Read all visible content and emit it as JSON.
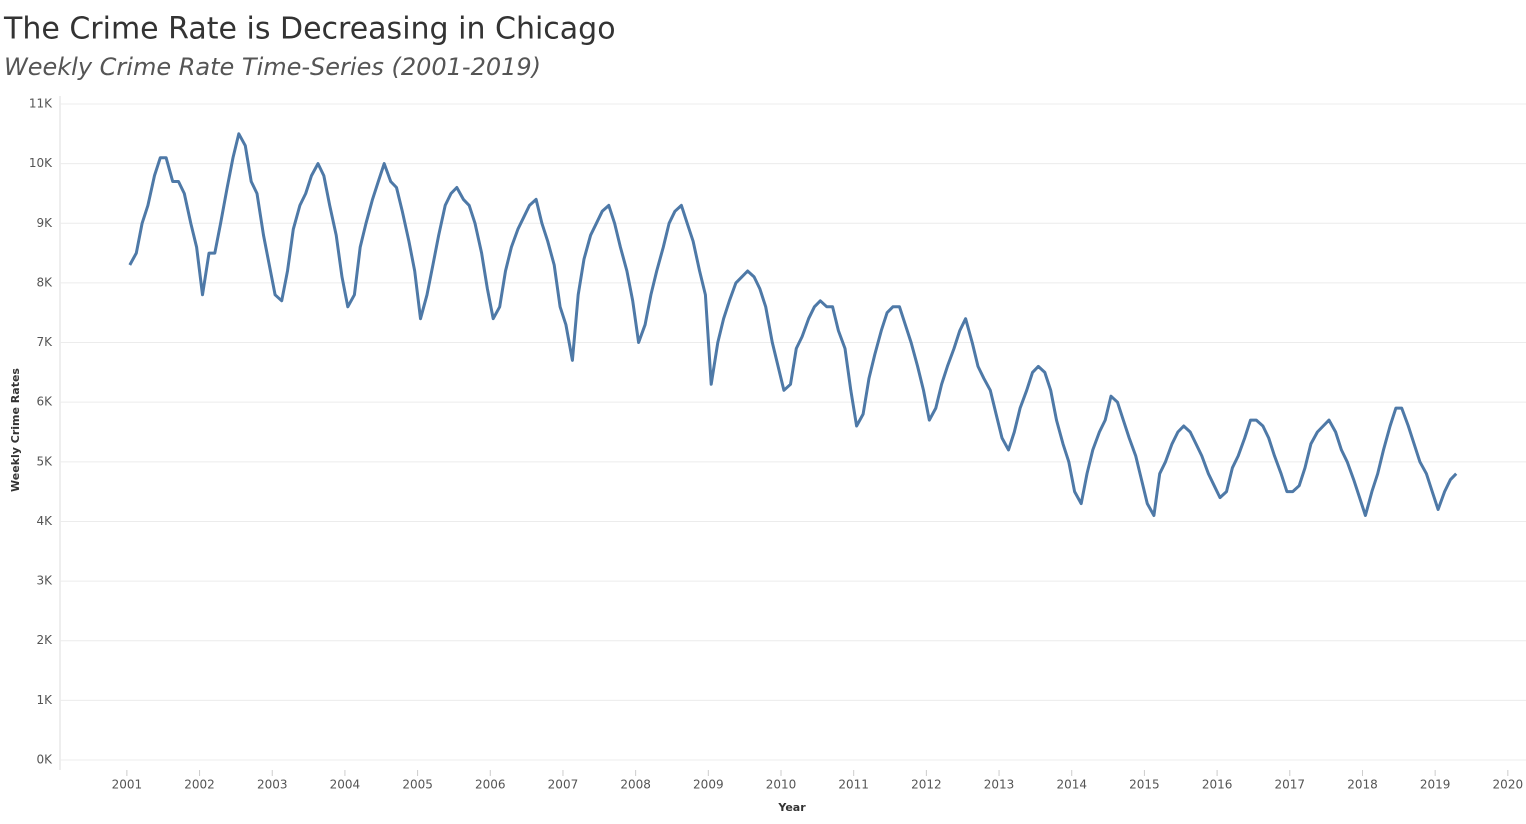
{
  "chart_data": {
    "type": "line",
    "title": "The Crime Rate is Decreasing in Chicago",
    "subtitle": "Weekly  Crime Rate Time-Series (2001-2019)",
    "x_label": "Year",
    "y_label": "Weekly Crime Rates",
    "x": [
      2001.04,
      2001.13,
      2001.21,
      2001.29,
      2001.38,
      2001.46,
      2001.54,
      2001.63,
      2001.71,
      2001.79,
      2001.88,
      2001.96,
      2002.04,
      2002.13,
      2002.21,
      2002.29,
      2002.38,
      2002.46,
      2002.54,
      2002.63,
      2002.71,
      2002.79,
      2002.88,
      2002.96,
      2003.04,
      2003.13,
      2003.21,
      2003.29,
      2003.38,
      2003.46,
      2003.54,
      2003.63,
      2003.71,
      2003.79,
      2003.88,
      2003.96,
      2004.04,
      2004.13,
      2004.21,
      2004.29,
      2004.38,
      2004.46,
      2004.54,
      2004.63,
      2004.71,
      2004.79,
      2004.88,
      2004.96,
      2005.04,
      2005.13,
      2005.21,
      2005.29,
      2005.38,
      2005.46,
      2005.54,
      2005.63,
      2005.71,
      2005.79,
      2005.88,
      2005.96,
      2006.04,
      2006.13,
      2006.21,
      2006.29,
      2006.38,
      2006.46,
      2006.54,
      2006.63,
      2006.71,
      2006.79,
      2006.88,
      2006.96,
      2007.04,
      2007.13,
      2007.21,
      2007.29,
      2007.38,
      2007.46,
      2007.54,
      2007.63,
      2007.71,
      2007.79,
      2007.88,
      2007.96,
      2008.04,
      2008.13,
      2008.21,
      2008.29,
      2008.38,
      2008.46,
      2008.54,
      2008.63,
      2008.71,
      2008.79,
      2008.88,
      2008.96,
      2009.04,
      2009.13,
      2009.21,
      2009.29,
      2009.38,
      2009.46,
      2009.54,
      2009.63,
      2009.71,
      2009.79,
      2009.88,
      2009.96,
      2010.04,
      2010.13,
      2010.21,
      2010.29,
      2010.38,
      2010.46,
      2010.54,
      2010.63,
      2010.71,
      2010.79,
      2010.88,
      2010.96,
      2011.04,
      2011.13,
      2011.21,
      2011.29,
      2011.38,
      2011.46,
      2011.54,
      2011.63,
      2011.71,
      2011.79,
      2011.88,
      2011.96,
      2012.04,
      2012.13,
      2012.21,
      2012.29,
      2012.38,
      2012.46,
      2012.54,
      2012.63,
      2012.71,
      2012.79,
      2012.88,
      2012.96,
      2013.04,
      2013.13,
      2013.21,
      2013.29,
      2013.38,
      2013.46,
      2013.54,
      2013.63,
      2013.71,
      2013.79,
      2013.88,
      2013.96,
      2014.04,
      2014.13,
      2014.21,
      2014.29,
      2014.38,
      2014.46,
      2014.54,
      2014.63,
      2014.71,
      2014.79,
      2014.88,
      2014.96,
      2015.04,
      2015.13,
      2015.21,
      2015.29,
      2015.38,
      2015.46,
      2015.54,
      2015.63,
      2015.71,
      2015.79,
      2015.88,
      2015.96,
      2016.04,
      2016.13,
      2016.21,
      2016.29,
      2016.38,
      2016.46,
      2016.54,
      2016.63,
      2016.71,
      2016.79,
      2016.88,
      2016.96,
      2017.04,
      2017.13,
      2017.21,
      2017.29,
      2017.38,
      2017.46,
      2017.54,
      2017.63,
      2017.71,
      2017.79,
      2017.88,
      2017.96,
      2018.04,
      2018.13,
      2018.21,
      2018.29,
      2018.38,
      2018.46,
      2018.54,
      2018.63,
      2018.71,
      2018.79,
      2018.88,
      2018.96,
      2019.04,
      2019.13,
      2019.21,
      2019.29
    ],
    "series": [
      {
        "name": "Weekly Crime Rates",
        "color": "#4e79a7",
        "values": [
          8300,
          8500,
          9000,
          9300,
          9800,
          10100,
          10100,
          9700,
          9700,
          9500,
          9000,
          8600,
          7800,
          8500,
          8500,
          9000,
          9600,
          10100,
          10500,
          10300,
          9700,
          9500,
          8800,
          8300,
          7800,
          7700,
          8200,
          8900,
          9300,
          9500,
          9800,
          10000,
          9800,
          9300,
          8800,
          8100,
          7600,
          7800,
          8600,
          9000,
          9400,
          9700,
          10000,
          9700,
          9600,
          9200,
          8700,
          8200,
          7400,
          7800,
          8300,
          8800,
          9300,
          9500,
          9600,
          9400,
          9300,
          9000,
          8500,
          7900,
          7400,
          7600,
          8200,
          8600,
          8900,
          9100,
          9300,
          9400,
          9000,
          8700,
          8300,
          7600,
          7300,
          6700,
          7800,
          8400,
          8800,
          9000,
          9200,
          9300,
          9000,
          8600,
          8200,
          7700,
          7000,
          7300,
          7800,
          8200,
          8600,
          9000,
          9200,
          9300,
          9000,
          8700,
          8200,
          7800,
          6300,
          7000,
          7400,
          7700,
          8000,
          8100,
          8200,
          8100,
          7900,
          7600,
          7000,
          6600,
          6200,
          6300,
          6900,
          7100,
          7400,
          7600,
          7700,
          7600,
          7600,
          7200,
          6900,
          6200,
          5600,
          5800,
          6400,
          6800,
          7200,
          7500,
          7600,
          7600,
          7300,
          7000,
          6600,
          6200,
          5700,
          5900,
          6300,
          6600,
          6900,
          7200,
          7400,
          7000,
          6600,
          6400,
          6200,
          5800,
          5400,
          5200,
          5500,
          5900,
          6200,
          6500,
          6600,
          6500,
          6200,
          5700,
          5300,
          5000,
          4500,
          4300,
          4800,
          5200,
          5500,
          5700,
          6100,
          6000,
          5700,
          5400,
          5100,
          4700,
          4300,
          4100,
          4800,
          5000,
          5300,
          5500,
          5600,
          5500,
          5300,
          5100,
          4800,
          4600,
          4400,
          4500,
          4900,
          5100,
          5400,
          5700,
          5700,
          5600,
          5400,
          5100,
          4800,
          4500,
          4500,
          4600,
          4900,
          5300,
          5500,
          5600,
          5700,
          5500,
          5200,
          5000,
          4700,
          4400,
          4100,
          4500,
          4800,
          5200,
          5600,
          5900,
          5900,
          5600,
          5300,
          5000,
          4800,
          4500,
          4200,
          4500,
          4700,
          4800
        ]
      }
    ],
    "xlim": [
      2000.08,
      2020.25
    ],
    "xticks": [
      2001,
      2002,
      2003,
      2004,
      2005,
      2006,
      2007,
      2008,
      2009,
      2010,
      2011,
      2012,
      2013,
      2014,
      2015,
      2016,
      2017,
      2018,
      2019,
      2020
    ],
    "ylim": [
      0,
      11000
    ],
    "yticks": [
      {
        "value": 0,
        "label": "0K"
      },
      {
        "value": 1000,
        "label": "1K"
      },
      {
        "value": 2000,
        "label": "2K"
      },
      {
        "value": 3000,
        "label": "3K"
      },
      {
        "value": 4000,
        "label": "4K"
      },
      {
        "value": 5000,
        "label": "5K"
      },
      {
        "value": 6000,
        "label": "6K"
      },
      {
        "value": 7000,
        "label": "7K"
      },
      {
        "value": 8000,
        "label": "8K"
      },
      {
        "value": 9000,
        "label": "9K"
      },
      {
        "value": 10000,
        "label": "10K"
      },
      {
        "value": 11000,
        "label": "11K"
      }
    ],
    "grid": true
  }
}
